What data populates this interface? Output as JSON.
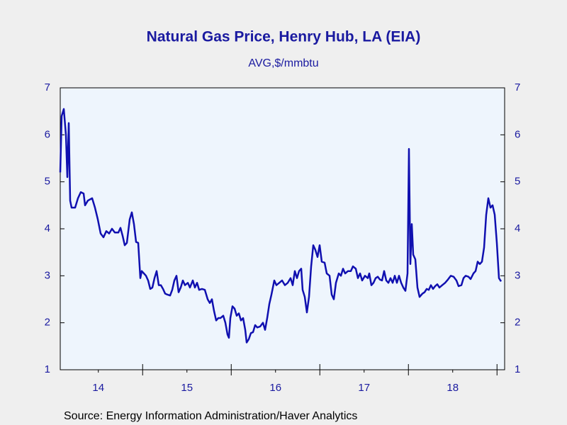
{
  "chart_data": {
    "type": "line",
    "title": "Natural Gas Price, Henry Hub, LA (EIA)",
    "subtitle": "AVG,$/mmbtu",
    "source": "Source:  Energy Information Administration/Haver Analytics",
    "color": "#1010b0",
    "x": [
      14.07,
      14.086,
      14.11,
      14.134,
      14.15,
      14.166,
      14.182,
      14.198,
      14.238,
      14.27,
      14.302,
      14.334,
      14.35,
      14.382,
      14.43,
      14.462,
      14.494,
      14.526,
      14.558,
      14.59,
      14.622,
      14.654,
      14.686,
      14.726,
      14.75,
      14.774,
      14.798,
      14.822,
      14.854,
      14.878,
      14.902,
      14.926,
      14.95,
      14.974,
      14.99,
      15.014,
      15.038,
      15.062,
      15.086,
      15.11,
      15.134,
      15.158,
      15.182,
      15.206,
      15.23,
      15.254,
      15.278,
      15.31,
      15.334,
      15.358,
      15.382,
      15.406,
      15.43,
      15.454,
      15.478,
      15.51,
      15.534,
      15.566,
      15.59,
      15.614,
      15.638,
      15.67,
      15.702,
      15.734,
      15.758,
      15.782,
      15.806,
      15.83,
      15.854,
      15.878,
      15.91,
      15.934,
      15.958,
      15.974,
      15.99,
      16.014,
      16.038,
      16.062,
      16.086,
      16.11,
      16.134,
      16.158,
      16.174,
      16.198,
      16.222,
      16.246,
      16.27,
      16.294,
      16.326,
      16.358,
      16.382,
      16.406,
      16.43,
      16.454,
      16.486,
      16.51,
      16.542,
      16.574,
      16.606,
      16.638,
      16.67,
      16.694,
      16.718,
      16.742,
      16.766,
      16.79,
      16.806,
      16.83,
      16.854,
      16.878,
      16.902,
      16.926,
      16.95,
      16.974,
      16.998,
      17.022,
      17.054,
      17.078,
      17.11,
      17.134,
      17.158,
      17.182,
      17.214,
      17.238,
      17.262,
      17.286,
      17.318,
      17.35,
      17.374,
      17.406,
      17.43,
      17.454,
      17.478,
      17.51,
      17.542,
      17.558,
      17.582,
      17.606,
      17.63,
      17.654,
      17.678,
      17.702,
      17.726,
      17.75,
      17.774,
      17.798,
      17.822,
      17.846,
      17.87,
      17.894,
      17.918,
      17.942,
      17.966,
      17.99,
      18.006,
      18.022,
      18.038,
      18.054,
      18.078,
      18.102,
      18.126,
      18.158,
      18.182,
      18.206,
      18.23,
      18.254,
      18.278,
      18.302,
      18.326,
      18.35,
      18.382,
      18.414,
      18.446,
      18.478,
      18.51,
      18.542,
      18.566,
      18.598,
      18.622,
      18.646,
      18.678,
      18.702,
      18.734,
      18.758,
      18.782,
      18.806,
      18.83,
      18.854,
      18.878,
      18.902,
      18.926,
      18.95,
      18.974,
      18.998,
      19.022,
      19.046
    ],
    "values": [
      5.2,
      6.4,
      6.55,
      6.0,
      5.1,
      6.25,
      4.6,
      4.45,
      4.45,
      4.65,
      4.78,
      4.75,
      4.5,
      4.6,
      4.65,
      4.45,
      4.2,
      3.9,
      3.82,
      3.95,
      3.9,
      4.0,
      3.92,
      3.92,
      4.02,
      3.85,
      3.65,
      3.7,
      4.2,
      4.35,
      4.1,
      3.72,
      3.7,
      2.95,
      3.1,
      3.05,
      3.0,
      2.9,
      2.72,
      2.75,
      2.95,
      3.1,
      2.8,
      2.8,
      2.72,
      2.62,
      2.6,
      2.58,
      2.7,
      2.9,
      3.0,
      2.65,
      2.75,
      2.9,
      2.8,
      2.85,
      2.75,
      2.9,
      2.75,
      2.85,
      2.7,
      2.72,
      2.7,
      2.5,
      2.42,
      2.5,
      2.25,
      2.05,
      2.1,
      2.1,
      2.15,
      2.0,
      1.75,
      1.68,
      2.1,
      2.35,
      2.3,
      2.15,
      2.2,
      2.05,
      2.1,
      1.85,
      1.58,
      1.65,
      1.78,
      1.8,
      1.95,
      1.9,
      1.92,
      2.0,
      1.85,
      2.1,
      2.4,
      2.6,
      2.9,
      2.8,
      2.85,
      2.9,
      2.8,
      2.85,
      2.95,
      2.8,
      3.1,
      2.95,
      3.1,
      3.15,
      2.7,
      2.55,
      2.22,
      2.55,
      3.2,
      3.65,
      3.55,
      3.4,
      3.65,
      3.3,
      3.28,
      3.05,
      3.0,
      2.6,
      2.5,
      2.85,
      3.05,
      3.0,
      3.15,
      3.05,
      3.1,
      3.1,
      3.2,
      3.15,
      2.95,
      3.05,
      2.9,
      3.0,
      2.95,
      3.05,
      2.8,
      2.85,
      2.95,
      2.98,
      2.92,
      2.9,
      3.1,
      2.9,
      2.85,
      2.95,
      2.85,
      3.0,
      2.85,
      3.0,
      2.85,
      2.75,
      2.68,
      3.05,
      5.7,
      3.25,
      4.1,
      3.45,
      3.35,
      2.75,
      2.55,
      2.62,
      2.65,
      2.72,
      2.7,
      2.8,
      2.72,
      2.78,
      2.82,
      2.75,
      2.8,
      2.85,
      2.92,
      3.0,
      2.98,
      2.9,
      2.78,
      2.8,
      2.95,
      3.0,
      2.98,
      2.93,
      3.05,
      3.1,
      3.3,
      3.25,
      3.3,
      3.6,
      4.3,
      4.65,
      4.45,
      4.5,
      4.3,
      3.7,
      2.95,
      2.88
    ],
    "xlim": [
      14.07,
      19.086
    ],
    "xticks": [
      {
        "value": 14.5,
        "label": "14"
      },
      {
        "value": 15.5,
        "label": "15"
      },
      {
        "value": 16.5,
        "label": "16"
      },
      {
        "value": 17.5,
        "label": "17"
      },
      {
        "value": 18.5,
        "label": "18"
      }
    ],
    "ylim": [
      1,
      7
    ],
    "yticks": [
      1,
      2,
      3,
      4,
      5,
      6,
      7
    ],
    "y2lim": [
      1,
      7
    ],
    "y2ticks": [
      1,
      2,
      3,
      4,
      5,
      6,
      7
    ]
  }
}
